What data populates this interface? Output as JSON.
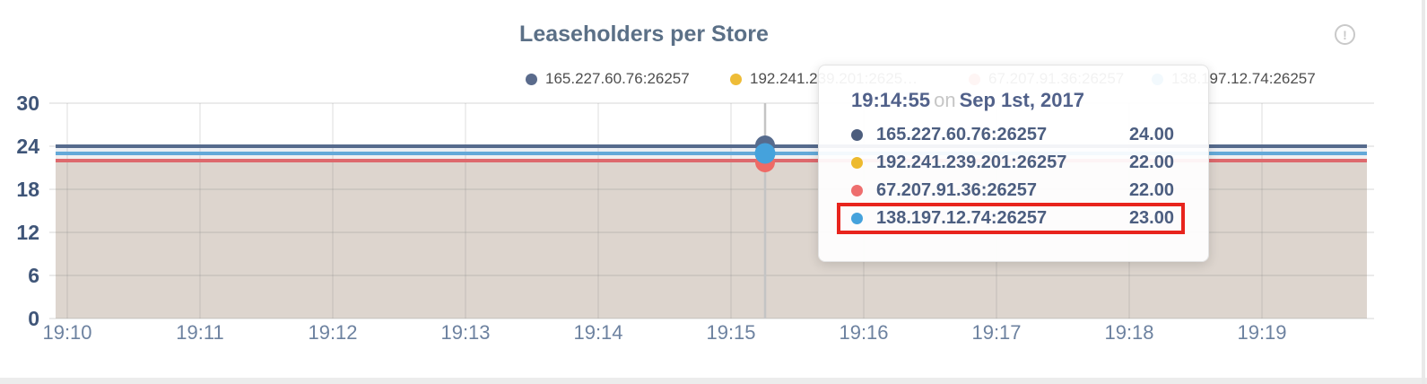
{
  "page": {
    "title": "Leaseholders per Store",
    "info_glyph": "!"
  },
  "legend": {
    "items": [
      {
        "label": "165.227.60.76:26257",
        "color": "#5a6b8c"
      },
      {
        "label": "192.241.239.201:2625…",
        "color": "#eebc37"
      },
      {
        "label": "67.207.91.36:26257",
        "color": "#ed6e6b"
      },
      {
        "label": "138.197.12.74:26257",
        "color": "#4aa4dc"
      }
    ]
  },
  "tooltip": {
    "time": "19:14:55",
    "on_word": "on",
    "date": "Sep 1st, 2017",
    "rows": [
      {
        "name": "165.227.60.76:26257",
        "value": "24.00",
        "color": "#4d5e7e",
        "highlighted": false
      },
      {
        "name": "192.241.239.201:26257",
        "value": "22.00",
        "color": "#edba2e",
        "highlighted": false
      },
      {
        "name": "67.207.91.36:26257",
        "value": "22.00",
        "color": "#ee6e6e",
        "highlighted": false
      },
      {
        "name": "138.197.12.74:26257",
        "value": "23.00",
        "color": "#45a2dc",
        "highlighted": true
      }
    ],
    "highlight_color": "#e8241d"
  },
  "chart_data": {
    "type": "line",
    "title": "Leaseholders per Store",
    "x": [
      "19:10",
      "19:11",
      "19:12",
      "19:13",
      "19:14",
      "19:15",
      "19:16",
      "19:17",
      "19:18",
      "19:19"
    ],
    "xlabel": "",
    "ylabel": "",
    "ylim": [
      0,
      30
    ],
    "yticks": [
      0,
      6,
      12,
      18,
      24,
      30
    ],
    "grid": true,
    "legend_position": "top",
    "area_fill": true,
    "series": [
      {
        "name": "165.227.60.76:26257",
        "color": "#566b8d",
        "values": [
          24,
          24,
          24,
          24,
          24,
          24,
          24,
          24,
          24,
          24
        ]
      },
      {
        "name": "192.241.239.201:26257",
        "color": "#edbb33",
        "values": [
          22,
          22,
          22,
          22,
          22,
          22,
          22,
          22,
          22,
          22
        ]
      },
      {
        "name": "67.207.91.36:26257",
        "color": "#dd696d",
        "values": [
          22,
          22,
          22,
          22,
          22,
          22,
          22,
          22,
          22,
          22
        ]
      },
      {
        "name": "138.197.12.74:26257",
        "color": "#64a9d8",
        "values": [
          23,
          23,
          23,
          23,
          23,
          23,
          23,
          23,
          23,
          23
        ]
      }
    ],
    "hover_point": {
      "time": "19:14:55",
      "date": "Sep 1st, 2017",
      "values": [
        24,
        22,
        22,
        23
      ]
    },
    "band_colors": {
      "between_24_23": "#ebeef3",
      "between_23_22": "#f2eff0",
      "below_22": "#ddd5ce"
    },
    "axis_label_color_y": "#3f5578",
    "axis_label_color_x": "#6d82a0"
  }
}
